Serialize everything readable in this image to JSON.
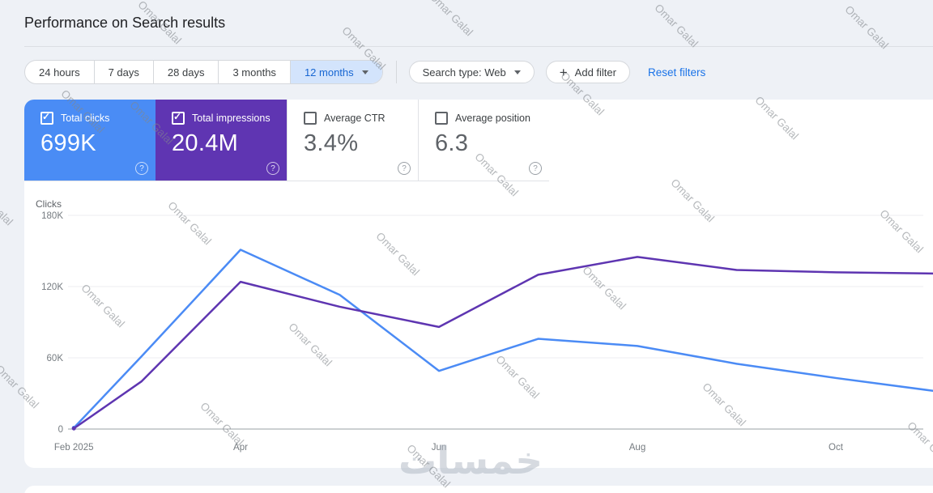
{
  "page": {
    "title": "Performance on Search results"
  },
  "watermark": {
    "text": "Omar Galal",
    "bottom_logo_text": "خمسات"
  },
  "filters": {
    "date_ranges": [
      {
        "label": "24 hours",
        "selected": false
      },
      {
        "label": "7 days",
        "selected": false
      },
      {
        "label": "28 days",
        "selected": false
      },
      {
        "label": "3 months",
        "selected": false
      },
      {
        "label": "12 months",
        "selected": true
      }
    ],
    "search_type": {
      "label": "Search type: Web"
    },
    "add_filter": {
      "label": "Add filter"
    },
    "reset": {
      "label": "Reset filters"
    }
  },
  "metrics": {
    "cards": [
      {
        "id": "total-clicks",
        "label": "Total clicks",
        "value": "699K",
        "checked": true,
        "bg": "#4a8cf5"
      },
      {
        "id": "total-impressions",
        "label": "Total impressions",
        "value": "20.4M",
        "checked": true,
        "bg": "#5f35b2"
      },
      {
        "id": "average-ctr",
        "label": "Average CTR",
        "value": "3.4%",
        "checked": false,
        "bg": "#ffffff"
      },
      {
        "id": "average-position",
        "label": "Average position",
        "value": "6.3",
        "checked": false,
        "bg": "#ffffff"
      }
    ]
  },
  "chart_data": {
    "type": "line",
    "title": "Performance on Search results",
    "ylabel": "Clicks",
    "legend_position": "none",
    "note": "Impressions series is drawn rescaled onto the Clicks axis, as rendered in the original chart. Month positions are months after Feb 1 2025.",
    "axis": {
      "ylim": [
        0,
        180000
      ],
      "grid": true,
      "y_ticks": [
        {
          "value": 180000,
          "label": "180K"
        },
        {
          "value": 120000,
          "label": "120K"
        },
        {
          "value": 60000,
          "label": "60K"
        },
        {
          "value": 0,
          "label": "0"
        }
      ],
      "x_tick_labels": [
        {
          "label": "Feb 2025",
          "month_pos": 0.32
        },
        {
          "label": "Apr",
          "month_pos": 2
        },
        {
          "label": "Jun",
          "month_pos": 4
        },
        {
          "label": "Aug",
          "month_pos": 6
        },
        {
          "label": "Oct",
          "month_pos": 8
        }
      ]
    },
    "series": [
      {
        "name": "Total clicks",
        "color": "#4b8bf5",
        "points": [
          {
            "m": 0.32,
            "y": 1000
          },
          {
            "m": 1,
            "y": 61000
          },
          {
            "m": 2,
            "y": 151000
          },
          {
            "m": 3,
            "y": 113000
          },
          {
            "m": 4,
            "y": 49000
          },
          {
            "m": 5,
            "y": 76000
          },
          {
            "m": 6,
            "y": 70000
          },
          {
            "m": 7,
            "y": 55000
          },
          {
            "m": 8,
            "y": 43000
          },
          {
            "m": 9,
            "y": 32000
          }
        ]
      },
      {
        "name": "Total impressions (scaled to Clicks axis)",
        "color": "#5e35b1",
        "points": [
          {
            "m": 0.32,
            "y": 500
          },
          {
            "m": 1,
            "y": 40000
          },
          {
            "m": 2,
            "y": 124000
          },
          {
            "m": 3,
            "y": 103000
          },
          {
            "m": 4,
            "y": 86000
          },
          {
            "m": 5,
            "y": 130000
          },
          {
            "m": 6,
            "y": 145000
          },
          {
            "m": 7,
            "y": 134000
          },
          {
            "m": 8,
            "y": 132000
          },
          {
            "m": 9,
            "y": 131000
          }
        ]
      }
    ]
  }
}
